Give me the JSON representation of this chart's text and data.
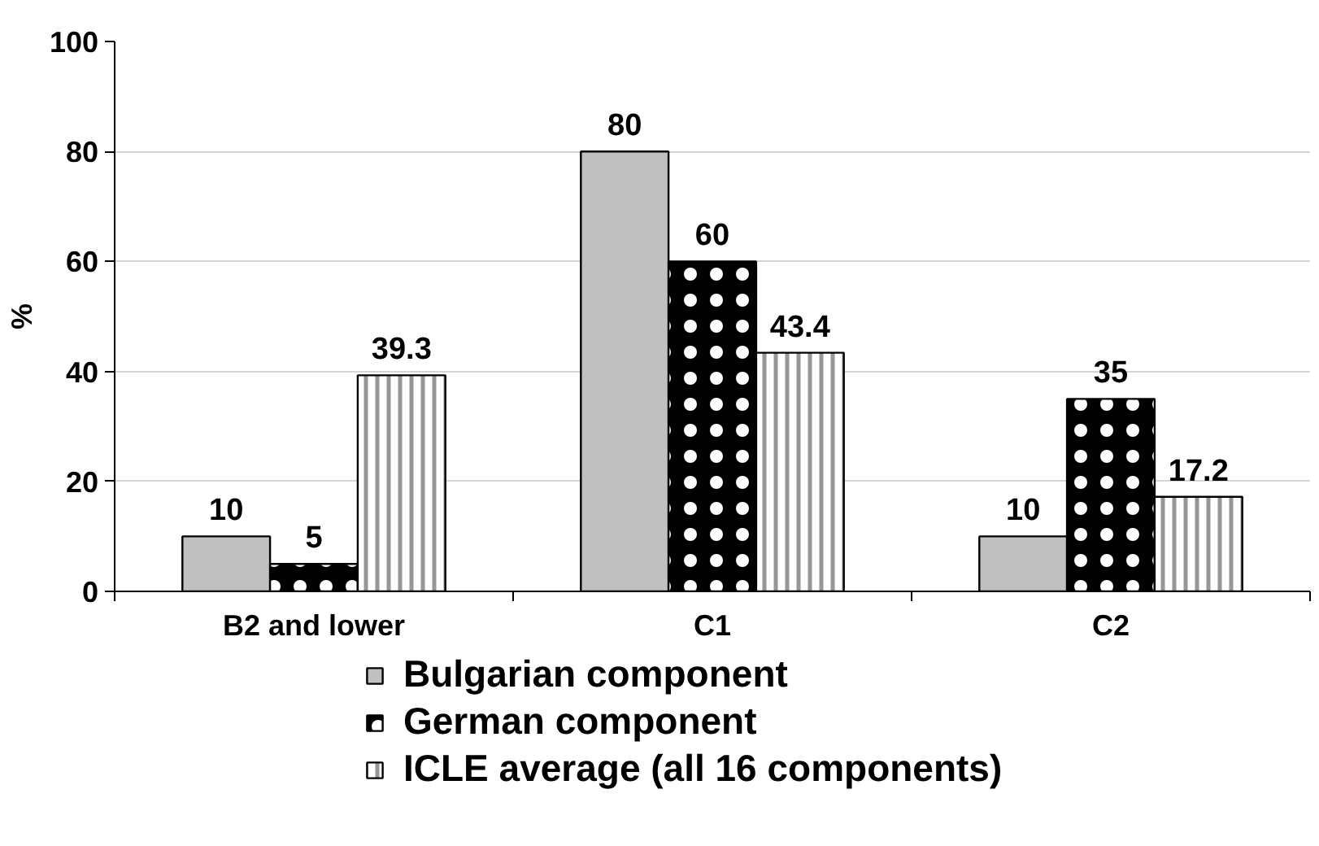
{
  "chart_data": {
    "type": "bar",
    "categories": [
      "B2 and lower",
      "C1",
      "C2"
    ],
    "ylabel": "%",
    "ylim": [
      0,
      100
    ],
    "yticks": [
      0,
      20,
      40,
      60,
      80,
      100
    ],
    "grid": "y",
    "legend": "bottom",
    "data_labels": true,
    "series": [
      {
        "name": "Bulgarian component",
        "color": "#c0c0c0",
        "values": [
          10,
          80,
          10
        ]
      },
      {
        "name": "German component",
        "color": "#000000",
        "values": [
          5,
          60,
          35
        ]
      },
      {
        "name": "ICLE average (all 16 components)",
        "color": "#969696",
        "values": [
          39.3,
          43.4,
          17.2
        ]
      }
    ]
  }
}
